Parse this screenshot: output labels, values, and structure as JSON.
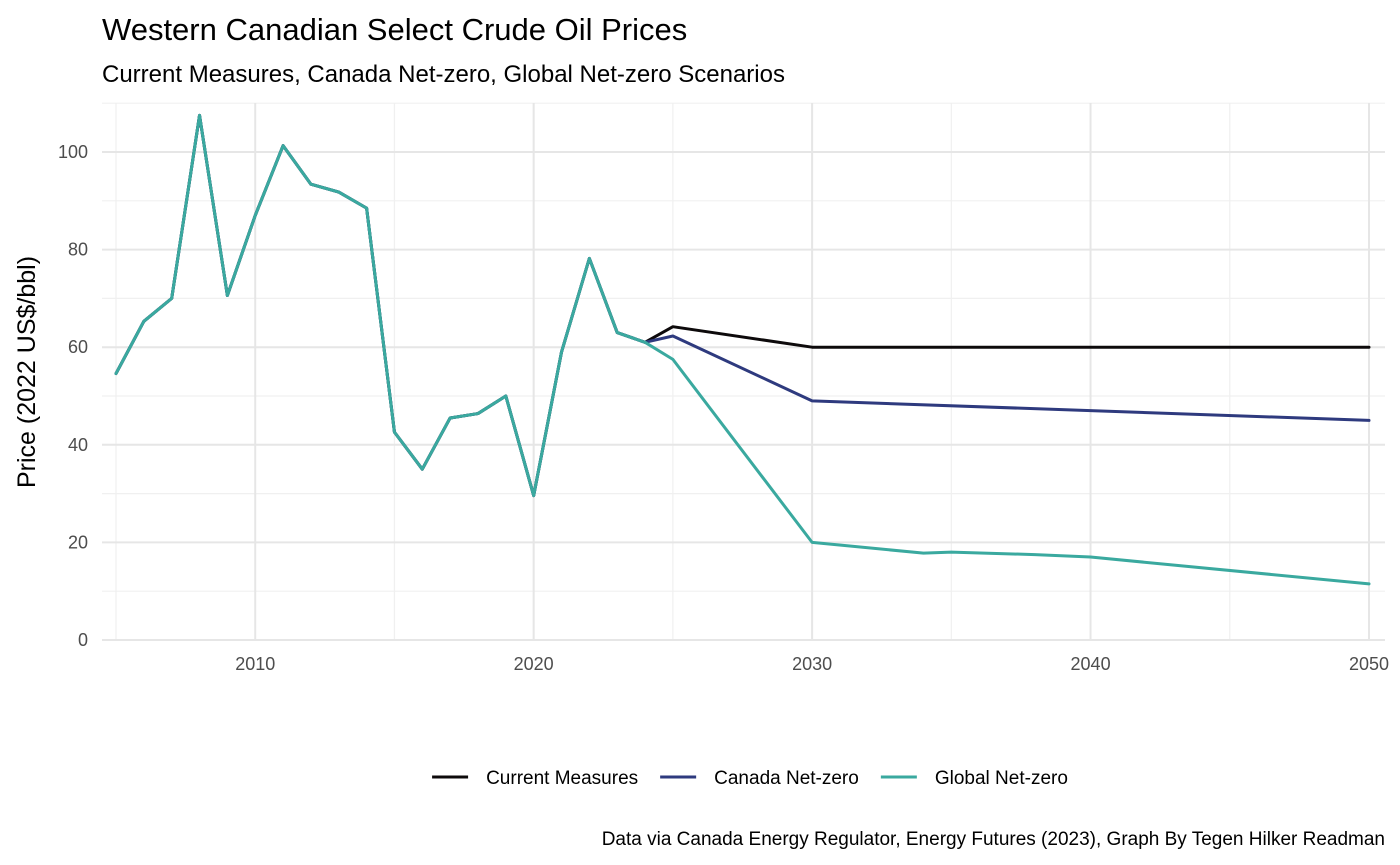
{
  "chart_data": {
    "type": "line",
    "title": "Western Canadian Select Crude Oil Prices",
    "subtitle": "Current Measures, Canada Net-zero, Global Net-zero Scenarios",
    "xlabel": "",
    "ylabel": "Price (2022 US$/bbl)",
    "caption": "Data via Canada Energy Regulator, Energy Futures (2023), Graph By Tegen Hilker Readman",
    "xlim": [
      2005,
      2050
    ],
    "ylim": [
      0,
      110
    ],
    "x_ticks": [
      2010,
      2020,
      2030,
      2040,
      2050
    ],
    "y_ticks": [
      0,
      20,
      40,
      60,
      80,
      100
    ],
    "grid": true,
    "legend_position": "bottom",
    "series": [
      {
        "name": "Current Measures",
        "color": "#0d0a0b",
        "points": [
          [
            2005,
            54.6
          ],
          [
            2006,
            65.3
          ],
          [
            2007,
            70.0
          ],
          [
            2008,
            107.5
          ],
          [
            2009,
            70.6
          ],
          [
            2010,
            87.0
          ],
          [
            2011,
            101.3
          ],
          [
            2012,
            93.4
          ],
          [
            2013,
            91.8
          ],
          [
            2014,
            88.5
          ],
          [
            2015,
            42.6
          ],
          [
            2016,
            35.0
          ],
          [
            2017,
            45.5
          ],
          [
            2018,
            46.4
          ],
          [
            2019,
            50.0
          ],
          [
            2020,
            29.6
          ],
          [
            2021,
            59.0
          ],
          [
            2022,
            78.2
          ],
          [
            2023,
            63.0
          ],
          [
            2024,
            61.0
          ],
          [
            2025,
            64.2
          ],
          [
            2030,
            60.0
          ],
          [
            2050,
            60.0
          ]
        ]
      },
      {
        "name": "Canada Net-zero",
        "color": "#2e3a7e",
        "points": [
          [
            2005,
            54.6
          ],
          [
            2006,
            65.3
          ],
          [
            2007,
            70.0
          ],
          [
            2008,
            107.5
          ],
          [
            2009,
            70.6
          ],
          [
            2010,
            87.0
          ],
          [
            2011,
            101.3
          ],
          [
            2012,
            93.4
          ],
          [
            2013,
            91.8
          ],
          [
            2014,
            88.5
          ],
          [
            2015,
            42.6
          ],
          [
            2016,
            35.0
          ],
          [
            2017,
            45.5
          ],
          [
            2018,
            46.4
          ],
          [
            2019,
            50.0
          ],
          [
            2020,
            29.6
          ],
          [
            2021,
            59.0
          ],
          [
            2022,
            78.2
          ],
          [
            2023,
            63.0
          ],
          [
            2024,
            61.0
          ],
          [
            2025,
            62.3
          ],
          [
            2030,
            49.0
          ],
          [
            2040,
            47.0
          ],
          [
            2050,
            45.0
          ]
        ]
      },
      {
        "name": "Global Net-zero",
        "color": "#3aa99f",
        "points": [
          [
            2005,
            54.6
          ],
          [
            2006,
            65.3
          ],
          [
            2007,
            70.0
          ],
          [
            2008,
            107.5
          ],
          [
            2009,
            70.6
          ],
          [
            2010,
            87.0
          ],
          [
            2011,
            101.3
          ],
          [
            2012,
            93.4
          ],
          [
            2013,
            91.8
          ],
          [
            2014,
            88.5
          ],
          [
            2015,
            42.6
          ],
          [
            2016,
            35.0
          ],
          [
            2017,
            45.5
          ],
          [
            2018,
            46.4
          ],
          [
            2019,
            50.0
          ],
          [
            2020,
            29.6
          ],
          [
            2021,
            59.0
          ],
          [
            2022,
            78.2
          ],
          [
            2023,
            63.0
          ],
          [
            2024,
            61.0
          ],
          [
            2025,
            57.5
          ],
          [
            2030,
            20.0
          ],
          [
            2034,
            17.8
          ],
          [
            2035,
            18.0
          ],
          [
            2038,
            17.5
          ],
          [
            2040,
            17.0
          ],
          [
            2050,
            11.5
          ]
        ]
      }
    ]
  }
}
